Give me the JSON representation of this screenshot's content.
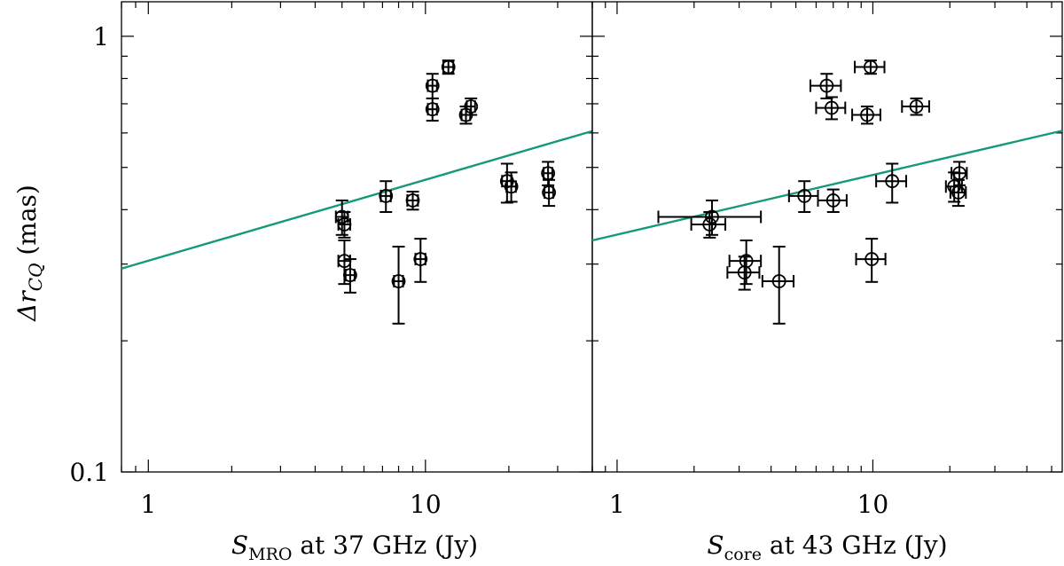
{
  "figure": {
    "ylabel": "Δr",
    "ylabel_sub": "CQ",
    "ylabel_unit": " (mas)",
    "colors": {
      "fit_line": "#14997a",
      "markers": "#000000"
    }
  },
  "chart_data": [
    {
      "type": "scatter",
      "panel": "left",
      "xlabel_main": "S",
      "xlabel_sub": "MRO",
      "xlabel_rest": " at 37 GHz (Jy)",
      "x_scale": "log",
      "y_scale": "log",
      "xlim": [
        0.8,
        40
      ],
      "ylim": [
        0.1,
        1.2
      ],
      "x_tick_labels": [
        {
          "value": 1,
          "label": "1"
        },
        {
          "value": 10,
          "label": "10"
        }
      ],
      "y_tick_labels": [
        {
          "value": 0.1,
          "label": "0.1"
        },
        {
          "value": 1,
          "label": "1"
        }
      ],
      "fit_line": {
        "x": [
          0.8,
          40
        ],
        "y": [
          0.293,
          0.606
        ]
      },
      "points": [
        {
          "x": 12.1,
          "y": 0.85,
          "yerr": [
            0.03,
            0.03
          ],
          "xerr": [
            0.5,
            0.5
          ]
        },
        {
          "x": 10.6,
          "y": 0.77,
          "yerr": [
            0.05,
            0.05
          ],
          "xerr": [
            0.4,
            0.4
          ]
        },
        {
          "x": 10.6,
          "y": 0.68,
          "yerr": [
            0.04,
            0.04
          ],
          "xerr": [
            0.4,
            0.4
          ]
        },
        {
          "x": 14.0,
          "y": 0.66,
          "yerr": [
            0.03,
            0.03
          ],
          "xerr": [
            0.5,
            0.5
          ]
        },
        {
          "x": 14.6,
          "y": 0.69,
          "yerr": [
            0.03,
            0.03
          ],
          "xerr": [
            0.5,
            0.5
          ]
        },
        {
          "x": 19.7,
          "y": 0.465,
          "yerr": [
            0.05,
            0.045
          ],
          "xerr": [
            0.8,
            0.8
          ]
        },
        {
          "x": 20.4,
          "y": 0.452,
          "yerr": [
            0.035,
            0.035
          ],
          "xerr": [
            0.8,
            0.8
          ]
        },
        {
          "x": 27.7,
          "y": 0.485,
          "yerr": [
            0.03,
            0.03
          ],
          "xerr": [
            1.0,
            1.0
          ]
        },
        {
          "x": 27.9,
          "y": 0.438,
          "yerr": [
            0.03,
            0.03
          ],
          "xerr": [
            1.0,
            1.0
          ]
        },
        {
          "x": 7.2,
          "y": 0.43,
          "yerr": [
            0.035,
            0.035
          ],
          "xerr": [
            0.3,
            0.3
          ]
        },
        {
          "x": 9.0,
          "y": 0.42,
          "yerr": [
            0.02,
            0.02
          ],
          "xerr": [
            0.4,
            0.4
          ]
        },
        {
          "x": 5.0,
          "y": 0.385,
          "yerr": [
            0.035,
            0.035
          ],
          "xerr": [
            0.25,
            0.25
          ]
        },
        {
          "x": 5.1,
          "y": 0.37,
          "yerr": [
            0.025,
            0.025
          ],
          "xerr": [
            0.25,
            0.25
          ]
        },
        {
          "x": 5.1,
          "y": 0.305,
          "yerr": [
            0.035,
            0.035
          ],
          "xerr": [
            0.25,
            0.25
          ]
        },
        {
          "x": 5.35,
          "y": 0.283,
          "yerr": [
            0.025,
            0.025
          ],
          "xerr": [
            0.2,
            0.2
          ]
        },
        {
          "x": 9.6,
          "y": 0.308,
          "yerr": [
            0.035,
            0.035
          ],
          "xerr": [
            0.4,
            0.4
          ]
        },
        {
          "x": 8.0,
          "y": 0.274,
          "yerr": [
            0.055,
            0.055
          ],
          "xerr": [
            0.3,
            0.3
          ]
        }
      ]
    },
    {
      "type": "scatter",
      "panel": "right",
      "xlabel_main": "S",
      "xlabel_sub": "core",
      "xlabel_rest": " at 43 GHz (Jy)",
      "x_scale": "log",
      "y_scale": "log",
      "xlim": [
        0.8,
        55
      ],
      "ylim": [
        0.1,
        1.2
      ],
      "x_tick_labels": [
        {
          "value": 1,
          "label": "1"
        },
        {
          "value": 10,
          "label": "10"
        }
      ],
      "y_tick_labels": [],
      "fit_line": {
        "x": [
          0.8,
          55
        ],
        "y": [
          0.34,
          0.607
        ]
      },
      "points": [
        {
          "x": 9.8,
          "y": 0.85,
          "yerr": [
            0.03,
            0.03
          ],
          "xerr": [
            1.3,
            1.3
          ]
        },
        {
          "x": 6.6,
          "y": 0.77,
          "yerr": [
            0.05,
            0.05
          ],
          "xerr": [
            0.9,
            0.9
          ]
        },
        {
          "x": 6.9,
          "y": 0.685,
          "yerr": [
            0.04,
            0.04
          ],
          "xerr": [
            0.9,
            0.9
          ]
        },
        {
          "x": 9.5,
          "y": 0.66,
          "yerr": [
            0.03,
            0.03
          ],
          "xerr": [
            1.2,
            1.2
          ]
        },
        {
          "x": 14.8,
          "y": 0.69,
          "yerr": [
            0.03,
            0.03
          ],
          "xerr": [
            1.8,
            1.8
          ]
        },
        {
          "x": 11.9,
          "y": 0.465,
          "yerr": [
            0.05,
            0.045
          ],
          "xerr": [
            1.6,
            1.6
          ]
        },
        {
          "x": 20.8,
          "y": 0.452,
          "yerr": [
            0.035,
            0.035
          ],
          "xerr": [
            1.5,
            1.5
          ]
        },
        {
          "x": 21.8,
          "y": 0.485,
          "yerr": [
            0.03,
            0.03
          ],
          "xerr": [
            1.5,
            1.5
          ]
        },
        {
          "x": 21.6,
          "y": 0.438,
          "yerr": [
            0.03,
            0.03
          ],
          "xerr": [
            1.5,
            1.5
          ]
        },
        {
          "x": 5.4,
          "y": 0.43,
          "yerr": [
            0.035,
            0.035
          ],
          "xerr": [
            0.7,
            0.7
          ]
        },
        {
          "x": 7.0,
          "y": 0.42,
          "yerr": [
            0.025,
            0.025
          ],
          "xerr": [
            0.9,
            0.9
          ]
        },
        {
          "x": 2.35,
          "y": 0.385,
          "yerr": [
            0.035,
            0.035
          ],
          "xerr": [
            0.9,
            1.3
          ]
        },
        {
          "x": 2.3,
          "y": 0.37,
          "yerr": [
            0.025,
            0.025
          ],
          "xerr": [
            0.35,
            0.35
          ]
        },
        {
          "x": 3.2,
          "y": 0.305,
          "yerr": [
            0.035,
            0.035
          ],
          "xerr": [
            0.45,
            0.45
          ]
        },
        {
          "x": 3.15,
          "y": 0.287,
          "yerr": [
            0.025,
            0.025
          ],
          "xerr": [
            0.45,
            0.45
          ]
        },
        {
          "x": 9.9,
          "y": 0.308,
          "yerr": [
            0.035,
            0.035
          ],
          "xerr": [
            1.3,
            1.3
          ]
        },
        {
          "x": 4.3,
          "y": 0.274,
          "yerr": [
            0.055,
            0.055
          ],
          "xerr": [
            0.6,
            0.6
          ]
        }
      ]
    }
  ]
}
